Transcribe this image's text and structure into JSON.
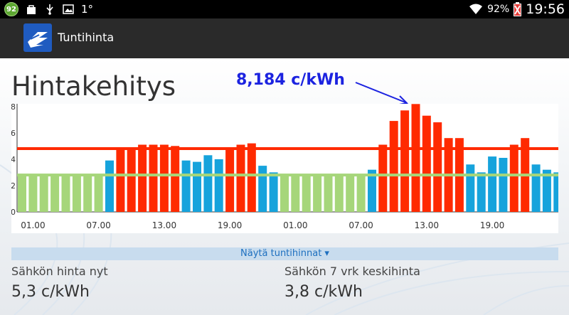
{
  "status_bar": {
    "badge": "92",
    "temperature": "1°",
    "battery": "92%",
    "time": "19:56",
    "icons": [
      "notification-badge-icon",
      "shopping-bag-icon",
      "usb-icon",
      "image-icon",
      "wifi-icon",
      "battery-icon"
    ]
  },
  "app": {
    "title": "Tuntihinta",
    "brand_color": "#1f5bc0"
  },
  "main": {
    "heading": "Hintakehitys",
    "peak_label": "8,184 c/kWh",
    "toggle_label": "Näytä tuntihinnat ▾",
    "current_price_caption": "Sähkön hinta nyt",
    "current_price_value": "5,3 c/kWh",
    "avg_price_caption": "Sähkön 7 vrk keskihinta",
    "avg_price_value": "3,8 c/kWh"
  },
  "chart_data": {
    "type": "bar",
    "title": "",
    "xlabel": "",
    "ylabel": "",
    "ylim": [
      0,
      8.2
    ],
    "yticks": [
      "0",
      "2",
      "4",
      "6",
      "8"
    ],
    "xtick_labels": [
      "01.00",
      "07.00",
      "13.00",
      "19.00",
      "01.00",
      "07.00",
      "13.00",
      "19.00"
    ],
    "xtick_hours": [
      1,
      7,
      13,
      19,
      25,
      31,
      37,
      43
    ],
    "values": [
      2.7,
      2.7,
      2.7,
      2.7,
      2.7,
      2.7,
      2.7,
      2.7,
      3.9,
      4.8,
      4.8,
      5.1,
      5.1,
      5.1,
      5.0,
      3.9,
      3.8,
      4.3,
      4.0,
      4.8,
      5.1,
      5.2,
      3.5,
      3.0,
      2.7,
      2.7,
      2.7,
      2.7,
      2.7,
      2.7,
      2.7,
      2.7,
      3.2,
      5.1,
      6.9,
      7.7,
      8.184,
      7.3,
      6.8,
      5.6,
      5.6,
      3.6,
      3.0,
      4.2,
      4.1,
      5.1,
      5.6,
      3.6,
      3.2,
      3.0
    ],
    "colors": {
      "low": "#a6d67a",
      "mid": "#16a3dc",
      "high": "#ff2a00"
    },
    "thresholds": {
      "low_line": 2.8,
      "high_line": 4.8
    },
    "line_colors": {
      "low_line": "#a6d67a",
      "high_line": "#ff2a00"
    }
  }
}
